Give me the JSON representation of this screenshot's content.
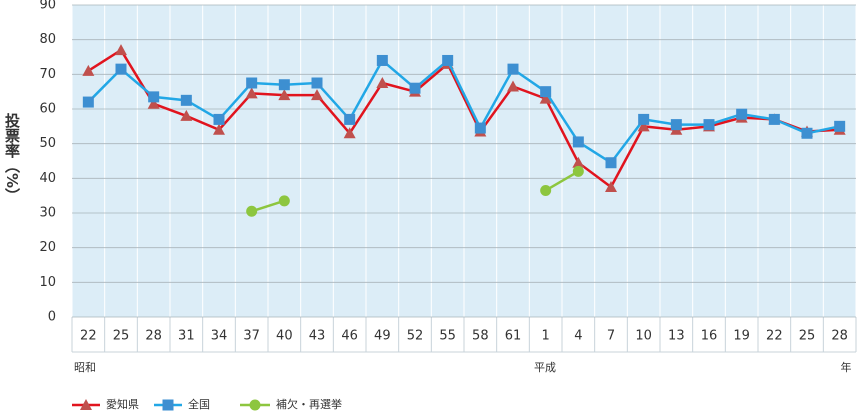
{
  "chart_data": {
    "type": "line",
    "y_label": "投票率（%）",
    "categories": [
      "22",
      "25",
      "28",
      "31",
      "34",
      "37",
      "40",
      "43",
      "46",
      "49",
      "52",
      "55",
      "58",
      "61",
      "1",
      "4",
      "7",
      "10",
      "13",
      "16",
      "19",
      "22",
      "25",
      "28"
    ],
    "era_labels": [
      "昭和",
      "平成",
      "年"
    ],
    "ylim": [
      0,
      90
    ],
    "yticks": [
      0,
      10,
      20,
      30,
      40,
      50,
      60,
      70,
      80,
      90
    ],
    "grid": true,
    "series": [
      {
        "name": "愛知県",
        "color": "#e1141e",
        "marker": "triangle",
        "marker_color": "#c0504d",
        "values": [
          71,
          77,
          61.5,
          58,
          54,
          64.5,
          64,
          64,
          53,
          67.5,
          65,
          73,
          53.5,
          66.5,
          63,
          44.5,
          37.5,
          55,
          54,
          55,
          57.5,
          57,
          53.5,
          54
        ]
      },
      {
        "name": "全国",
        "color": "#22a7e6",
        "marker": "square",
        "marker_color": "#3d8fd1",
        "values": [
          62,
          71.5,
          63.5,
          62.5,
          57,
          67.5,
          67,
          67.5,
          57,
          74,
          66,
          74,
          54.5,
          71.5,
          65,
          50.5,
          44.5,
          57,
          55.5,
          55.5,
          58.5,
          57,
          53,
          55
        ]
      },
      {
        "name": "補欠・再選挙",
        "color": "#8dc63f",
        "marker": "circle",
        "marker_color": "#8dc63f",
        "values": [
          null,
          null,
          null,
          null,
          null,
          30.5,
          33.5,
          null,
          null,
          null,
          null,
          null,
          null,
          null,
          36.5,
          42,
          null,
          null,
          null,
          null,
          null,
          null,
          null,
          null
        ]
      }
    ]
  }
}
